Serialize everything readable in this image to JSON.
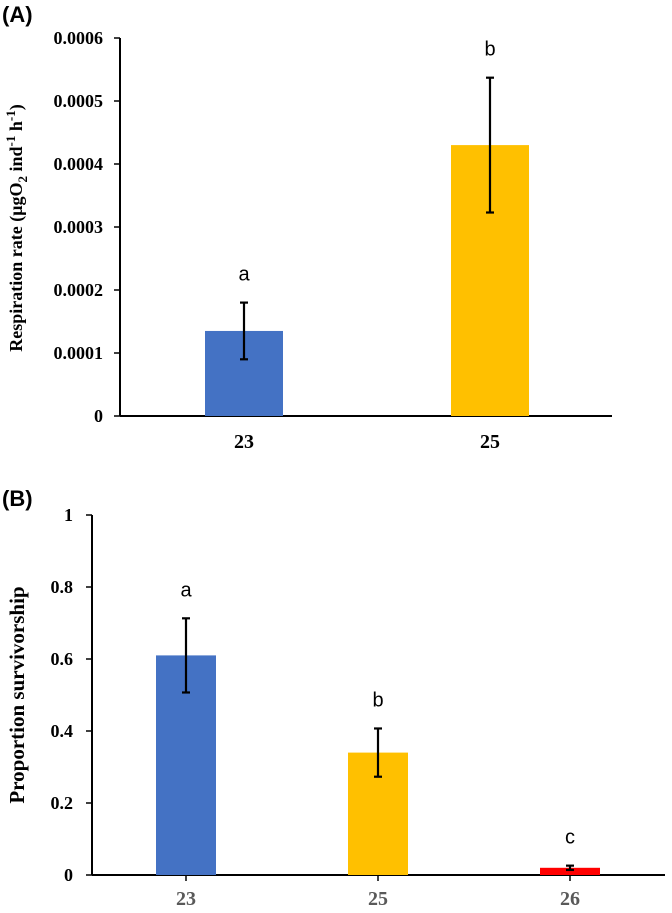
{
  "chart_data": [
    {
      "panel": "(A)",
      "type": "bar",
      "categories": [
        "23",
        "25"
      ],
      "values": [
        0.000135,
        0.00043
      ],
      "errors": [
        4.5e-05,
        0.000107
      ],
      "significance": [
        "a",
        "b"
      ],
      "colors": [
        "#4472C4",
        "#FFC000"
      ],
      "ylabel_parts": {
        "base": "Respiration rate (μgO",
        "sub": "2",
        "mid1": " ind",
        "sup1": "-1",
        "mid2": " h",
        "sup2": "-1",
        "end": ")"
      },
      "ylim": [
        0,
        0.0006
      ],
      "yticks": [
        "0",
        "0.0001",
        "0.0002",
        "0.0003",
        "0.0004",
        "0.0005",
        "0.0006"
      ],
      "ytick_values": [
        0,
        0.0001,
        0.0002,
        0.0003,
        0.0004,
        0.0005,
        0.0006
      ],
      "grid": false
    },
    {
      "panel": "(B)",
      "type": "bar",
      "categories": [
        "23",
        "25",
        "26"
      ],
      "values": [
        0.61,
        0.34,
        0.02
      ],
      "errors": [
        0.103,
        0.067,
        0.006
      ],
      "significance": [
        "a",
        "b",
        "c"
      ],
      "colors": [
        "#4472C4",
        "#FFC000",
        "#FF0000"
      ],
      "ylabel": "Proportion survivorship",
      "ylim": [
        0,
        1
      ],
      "yticks": [
        "0",
        "0.2",
        "0.4",
        "0.6",
        "0.8",
        "1"
      ],
      "ytick_values": [
        0,
        0.2,
        0.4,
        0.6,
        0.8,
        1
      ],
      "grid": false
    }
  ]
}
